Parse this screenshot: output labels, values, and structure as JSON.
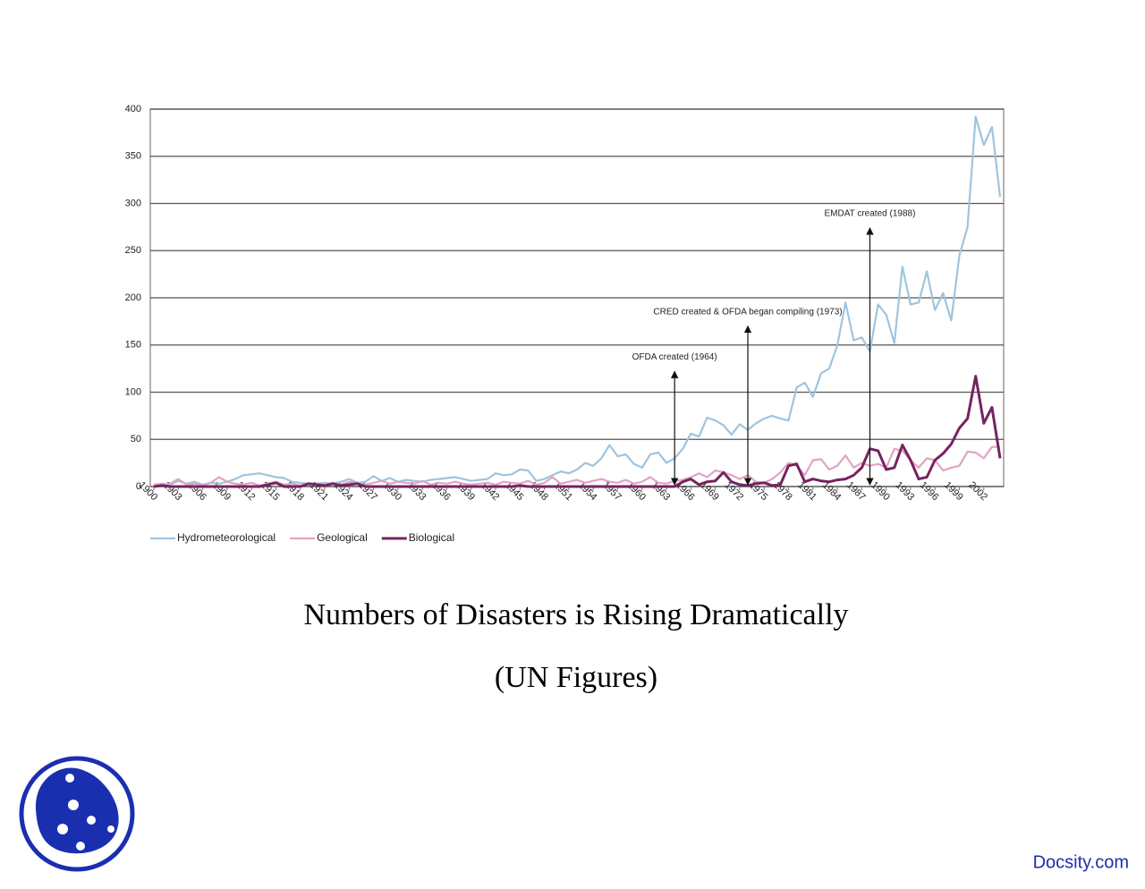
{
  "chart_data": {
    "type": "line",
    "xlim": [
      1900,
      2004
    ],
    "ylim": [
      0,
      400
    ],
    "xticks": [
      1900,
      1903,
      1906,
      1909,
      1912,
      1915,
      1918,
      1921,
      1924,
      1927,
      1930,
      1933,
      1936,
      1939,
      1942,
      1945,
      1948,
      1951,
      1954,
      1957,
      1960,
      1963,
      1966,
      1969,
      1972,
      1975,
      1978,
      1981,
      1984,
      1987,
      1990,
      1993,
      1996,
      1999,
      2002
    ],
    "yticks": [
      0,
      50,
      100,
      150,
      200,
      250,
      300,
      350,
      400
    ],
    "grid": true,
    "legend": "bottom-left",
    "x": [
      1900,
      1901,
      1902,
      1903,
      1904,
      1905,
      1906,
      1907,
      1908,
      1909,
      1910,
      1911,
      1912,
      1913,
      1914,
      1915,
      1916,
      1917,
      1918,
      1919,
      1920,
      1921,
      1922,
      1923,
      1924,
      1925,
      1926,
      1927,
      1928,
      1929,
      1930,
      1931,
      1932,
      1933,
      1934,
      1935,
      1936,
      1937,
      1938,
      1939,
      1940,
      1941,
      1942,
      1943,
      1944,
      1945,
      1946,
      1947,
      1948,
      1949,
      1950,
      1951,
      1952,
      1953,
      1954,
      1955,
      1956,
      1957,
      1958,
      1959,
      1960,
      1961,
      1962,
      1963,
      1964,
      1965,
      1966,
      1967,
      1968,
      1969,
      1970,
      1971,
      1972,
      1973,
      1974,
      1975,
      1976,
      1977,
      1978,
      1979,
      1980,
      1981,
      1982,
      1983,
      1984,
      1985,
      1986,
      1987,
      1988,
      1989,
      1990,
      1991,
      1992,
      1993,
      1994,
      1995,
      1996,
      1997,
      1998,
      1999,
      2000,
      2001,
      2002,
      2003,
      2004
    ],
    "series": [
      {
        "name": "Hydrometeorological",
        "color": "#9fc4de",
        "values": [
          2,
          3,
          2,
          6,
          3,
          5,
          2,
          4,
          3,
          5,
          8,
          12,
          13,
          14,
          12,
          10,
          9,
          5,
          4,
          3,
          3,
          4,
          3,
          5,
          8,
          4,
          5,
          11,
          6,
          9,
          5,
          7,
          6,
          5,
          7,
          8,
          9,
          10,
          8,
          6,
          7,
          8,
          14,
          12,
          13,
          18,
          17,
          6,
          8,
          12,
          16,
          14,
          18,
          25,
          22,
          30,
          44,
          32,
          34,
          24,
          20,
          34,
          36,
          25,
          30,
          40,
          56,
          53,
          73,
          70,
          65,
          55,
          66,
          60,
          67,
          72,
          75,
          72,
          70,
          105,
          110,
          95,
          120,
          125,
          150,
          195,
          155,
          158,
          143,
          193,
          182,
          152,
          233,
          193,
          195,
          228,
          187,
          205,
          176,
          245,
          275,
          392,
          362,
          381,
          307
        ]
      },
      {
        "name": "Geological",
        "color": "#e3a3c4",
        "values": [
          2,
          1,
          3,
          8,
          2,
          3,
          1,
          4,
          10,
          5,
          3,
          2,
          4,
          1,
          3,
          5,
          2,
          3,
          1,
          2,
          3,
          1,
          4,
          2,
          5,
          3,
          2,
          4,
          6,
          3,
          5,
          4,
          3,
          6,
          2,
          4,
          3,
          5,
          3,
          2,
          3,
          4,
          2,
          5,
          4,
          3,
          6,
          2,
          4,
          10,
          3,
          5,
          7,
          4,
          6,
          8,
          5,
          4,
          7,
          3,
          5,
          10,
          4,
          3,
          6,
          7,
          10,
          14,
          10,
          17,
          15,
          12,
          8,
          12,
          5,
          4,
          8,
          15,
          25,
          22,
          12,
          28,
          29,
          18,
          22,
          33,
          20,
          25,
          22,
          24,
          20,
          40,
          38,
          28,
          20,
          30,
          28,
          17,
          20,
          22,
          37,
          36,
          30,
          42,
          42
        ]
      },
      {
        "name": "Biological",
        "color": "#76235f",
        "values": [
          0,
          1,
          0,
          0,
          0,
          0,
          0,
          0,
          0,
          0,
          0,
          0,
          0,
          0,
          2,
          4,
          0,
          0,
          0,
          3,
          2,
          1,
          3,
          1,
          2,
          3,
          0,
          0,
          0,
          0,
          0,
          0,
          0,
          0,
          0,
          0,
          0,
          0,
          0,
          0,
          0,
          0,
          0,
          0,
          0,
          1,
          0,
          0,
          0,
          0,
          0,
          0,
          0,
          0,
          0,
          0,
          0,
          0,
          0,
          0,
          0,
          0,
          0,
          0,
          0,
          5,
          8,
          2,
          5,
          6,
          15,
          5,
          2,
          1,
          3,
          4,
          1,
          2,
          22,
          24,
          5,
          8,
          6,
          5,
          7,
          8,
          12,
          20,
          40,
          38,
          18,
          20,
          44,
          28,
          8,
          10,
          28,
          35,
          45,
          62,
          72,
          117,
          67,
          84,
          30
        ]
      }
    ],
    "annotations": [
      {
        "text": "OFDA created (1964)",
        "x": 1964,
        "y": 122
      },
      {
        "text": "CRED created & OFDA began compiling (1973)",
        "x": 1973,
        "y": 170
      },
      {
        "text": "EMDAT created (1988)",
        "x": 1988,
        "y": 274
      }
    ]
  },
  "caption": {
    "title": "Numbers of Disasters is Rising Dramatically",
    "subtitle": "(UN Figures)"
  },
  "footer": {
    "brand": "Docsity.com"
  }
}
